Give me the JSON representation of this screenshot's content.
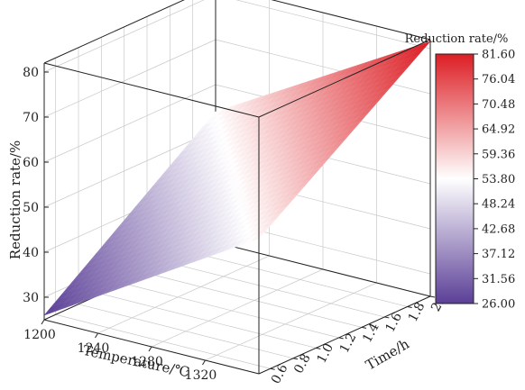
{
  "chart_data": {
    "type": "surface",
    "zlabel": "Reduction rate/%",
    "xlabel": "Temperature/℃",
    "ylabel": "Time/h",
    "colorbar_title": "Reduction rate/%",
    "x_range": [
      1200,
      1360
    ],
    "y_range": [
      0.5,
      2.0
    ],
    "z_range": [
      25,
      82
    ],
    "x_ticks": [
      "1200",
      "1240",
      "1280",
      "1320"
    ],
    "y_ticks": [
      "0.6",
      "0.8",
      "1.0",
      "1.2",
      "1.4",
      "1.6",
      "1.8",
      "2.0"
    ],
    "z_ticks": [
      "30",
      "40",
      "50",
      "60",
      "70",
      "80"
    ],
    "colorbar_ticks": [
      "81.60",
      "76.04",
      "70.48",
      "64.92",
      "59.36",
      "53.80",
      "48.24",
      "42.68",
      "37.12",
      "31.56",
      "26.00"
    ],
    "colorbar_min": 26.0,
    "colorbar_max": 81.6,
    "colormap": [
      "#5b3f97",
      "#ffffff",
      "#dc1e24"
    ],
    "surface_corner_values": [
      {
        "temperature": 1200,
        "time": 0.5,
        "reduction_rate": 26.0
      },
      {
        "temperature": 1200,
        "time": 2.0,
        "reduction_rate": 54.0
      },
      {
        "temperature": 1360,
        "time": 0.5,
        "reduction_rate": 55.0
      },
      {
        "temperature": 1360,
        "time": 2.0,
        "reduction_rate": 81.6
      }
    ],
    "grid": true
  }
}
